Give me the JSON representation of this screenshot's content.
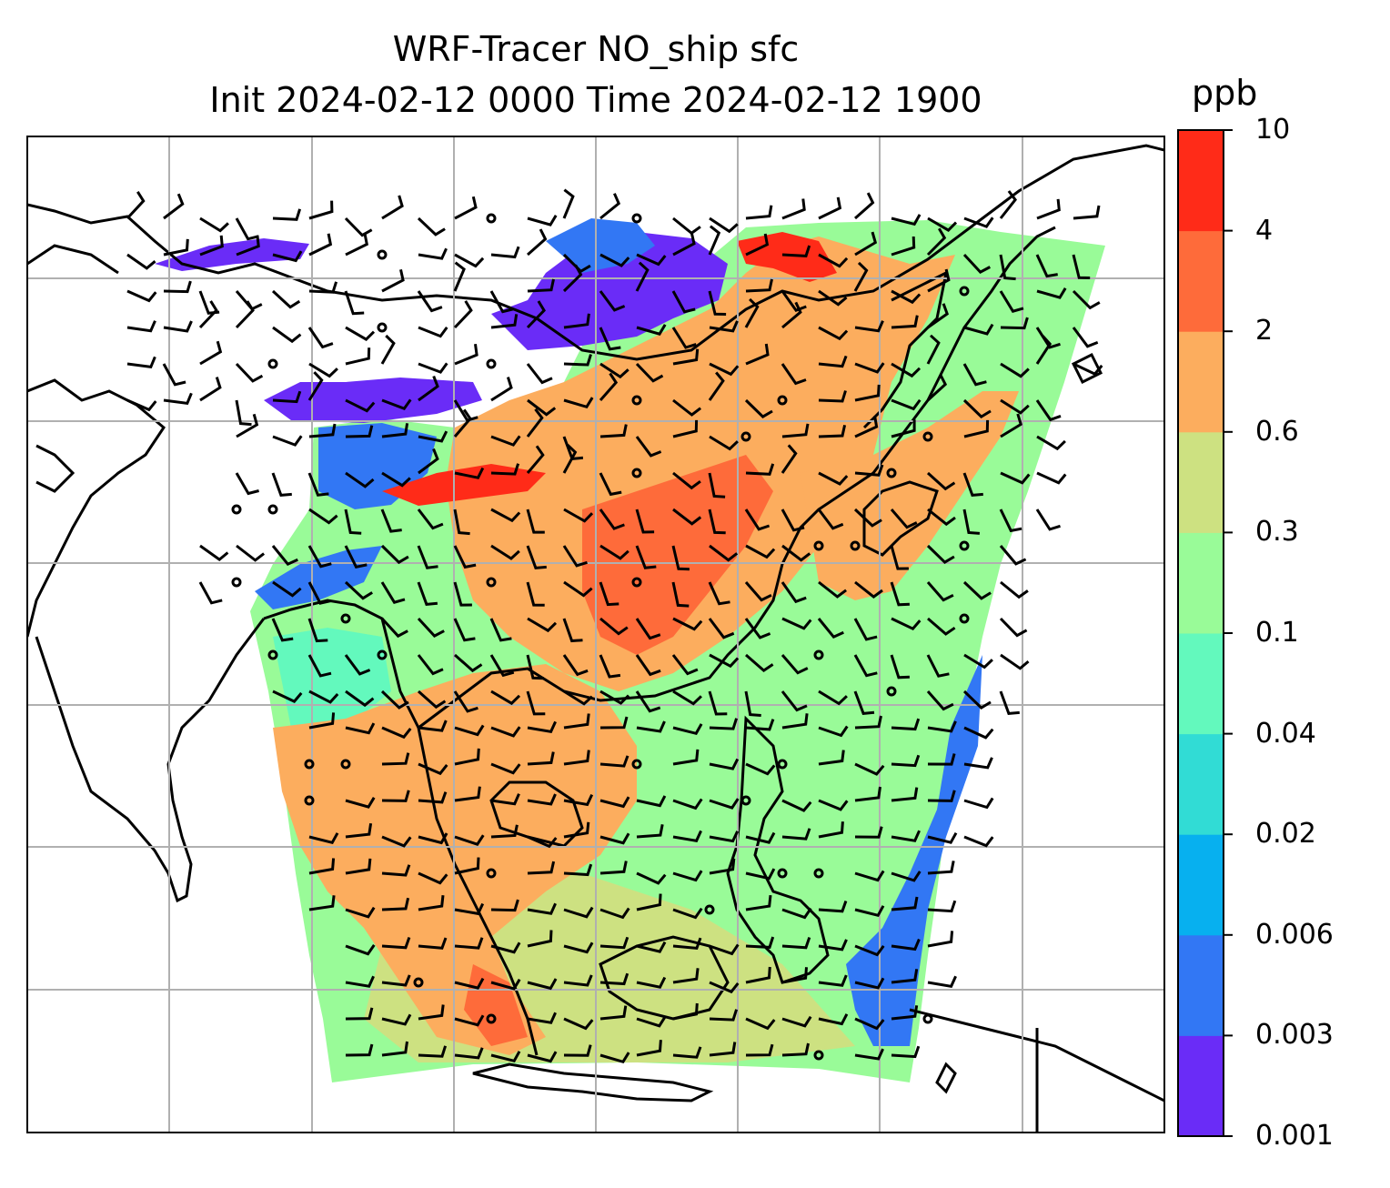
{
  "title": {
    "line1": "WRF-Tracer NO_ship sfc",
    "line2": "Init 2024-02-12 0000 Time 2024-02-12 1900"
  },
  "colorbar": {
    "unit": "ppb",
    "levels": [
      "0.001",
      "0.003",
      "0.006",
      "0.02",
      "0.04",
      "0.1",
      "0.3",
      "0.6",
      "2",
      "4",
      "10"
    ],
    "colors": [
      "#6a2cf7",
      "#3277f4",
      "#07b0ef",
      "#31dcd5",
      "#63f9bd",
      "#99fb98",
      "#cde181",
      "#fcad5e",
      "#fe6b3a",
      "#ff2b18"
    ]
  },
  "map": {
    "background": "#ffffff",
    "gridlines": "on",
    "coastline_color": "#000000",
    "wind_barbs": "on",
    "dominant_colors": {
      "low": "#6a2cf7",
      "mid": "#99fb98",
      "high": "#fcad5e",
      "peak": "#ff2b18"
    }
  }
}
